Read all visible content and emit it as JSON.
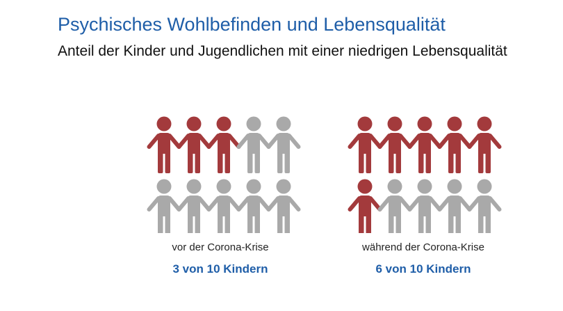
{
  "header": {
    "title": "Psychisches Wohlbefinden und Lebensqualität",
    "subtitle": "Anteil der Kinder und Jugendlichen mit einer niedrigen Lebensqualität"
  },
  "colors": {
    "highlight": "#a33a3c",
    "neutral": "#a9a9a9",
    "title": "#1f5ea8"
  },
  "chart_data": {
    "type": "pictograph",
    "total": 10,
    "icon": "person-icon",
    "panels": [
      {
        "caption": "vor der Corona-Krise",
        "value": 3,
        "label": "3 von 10 Kindern"
      },
      {
        "caption": "während der Corona-Krise",
        "value": 6,
        "label": "6 von 10 Kindern"
      }
    ]
  }
}
